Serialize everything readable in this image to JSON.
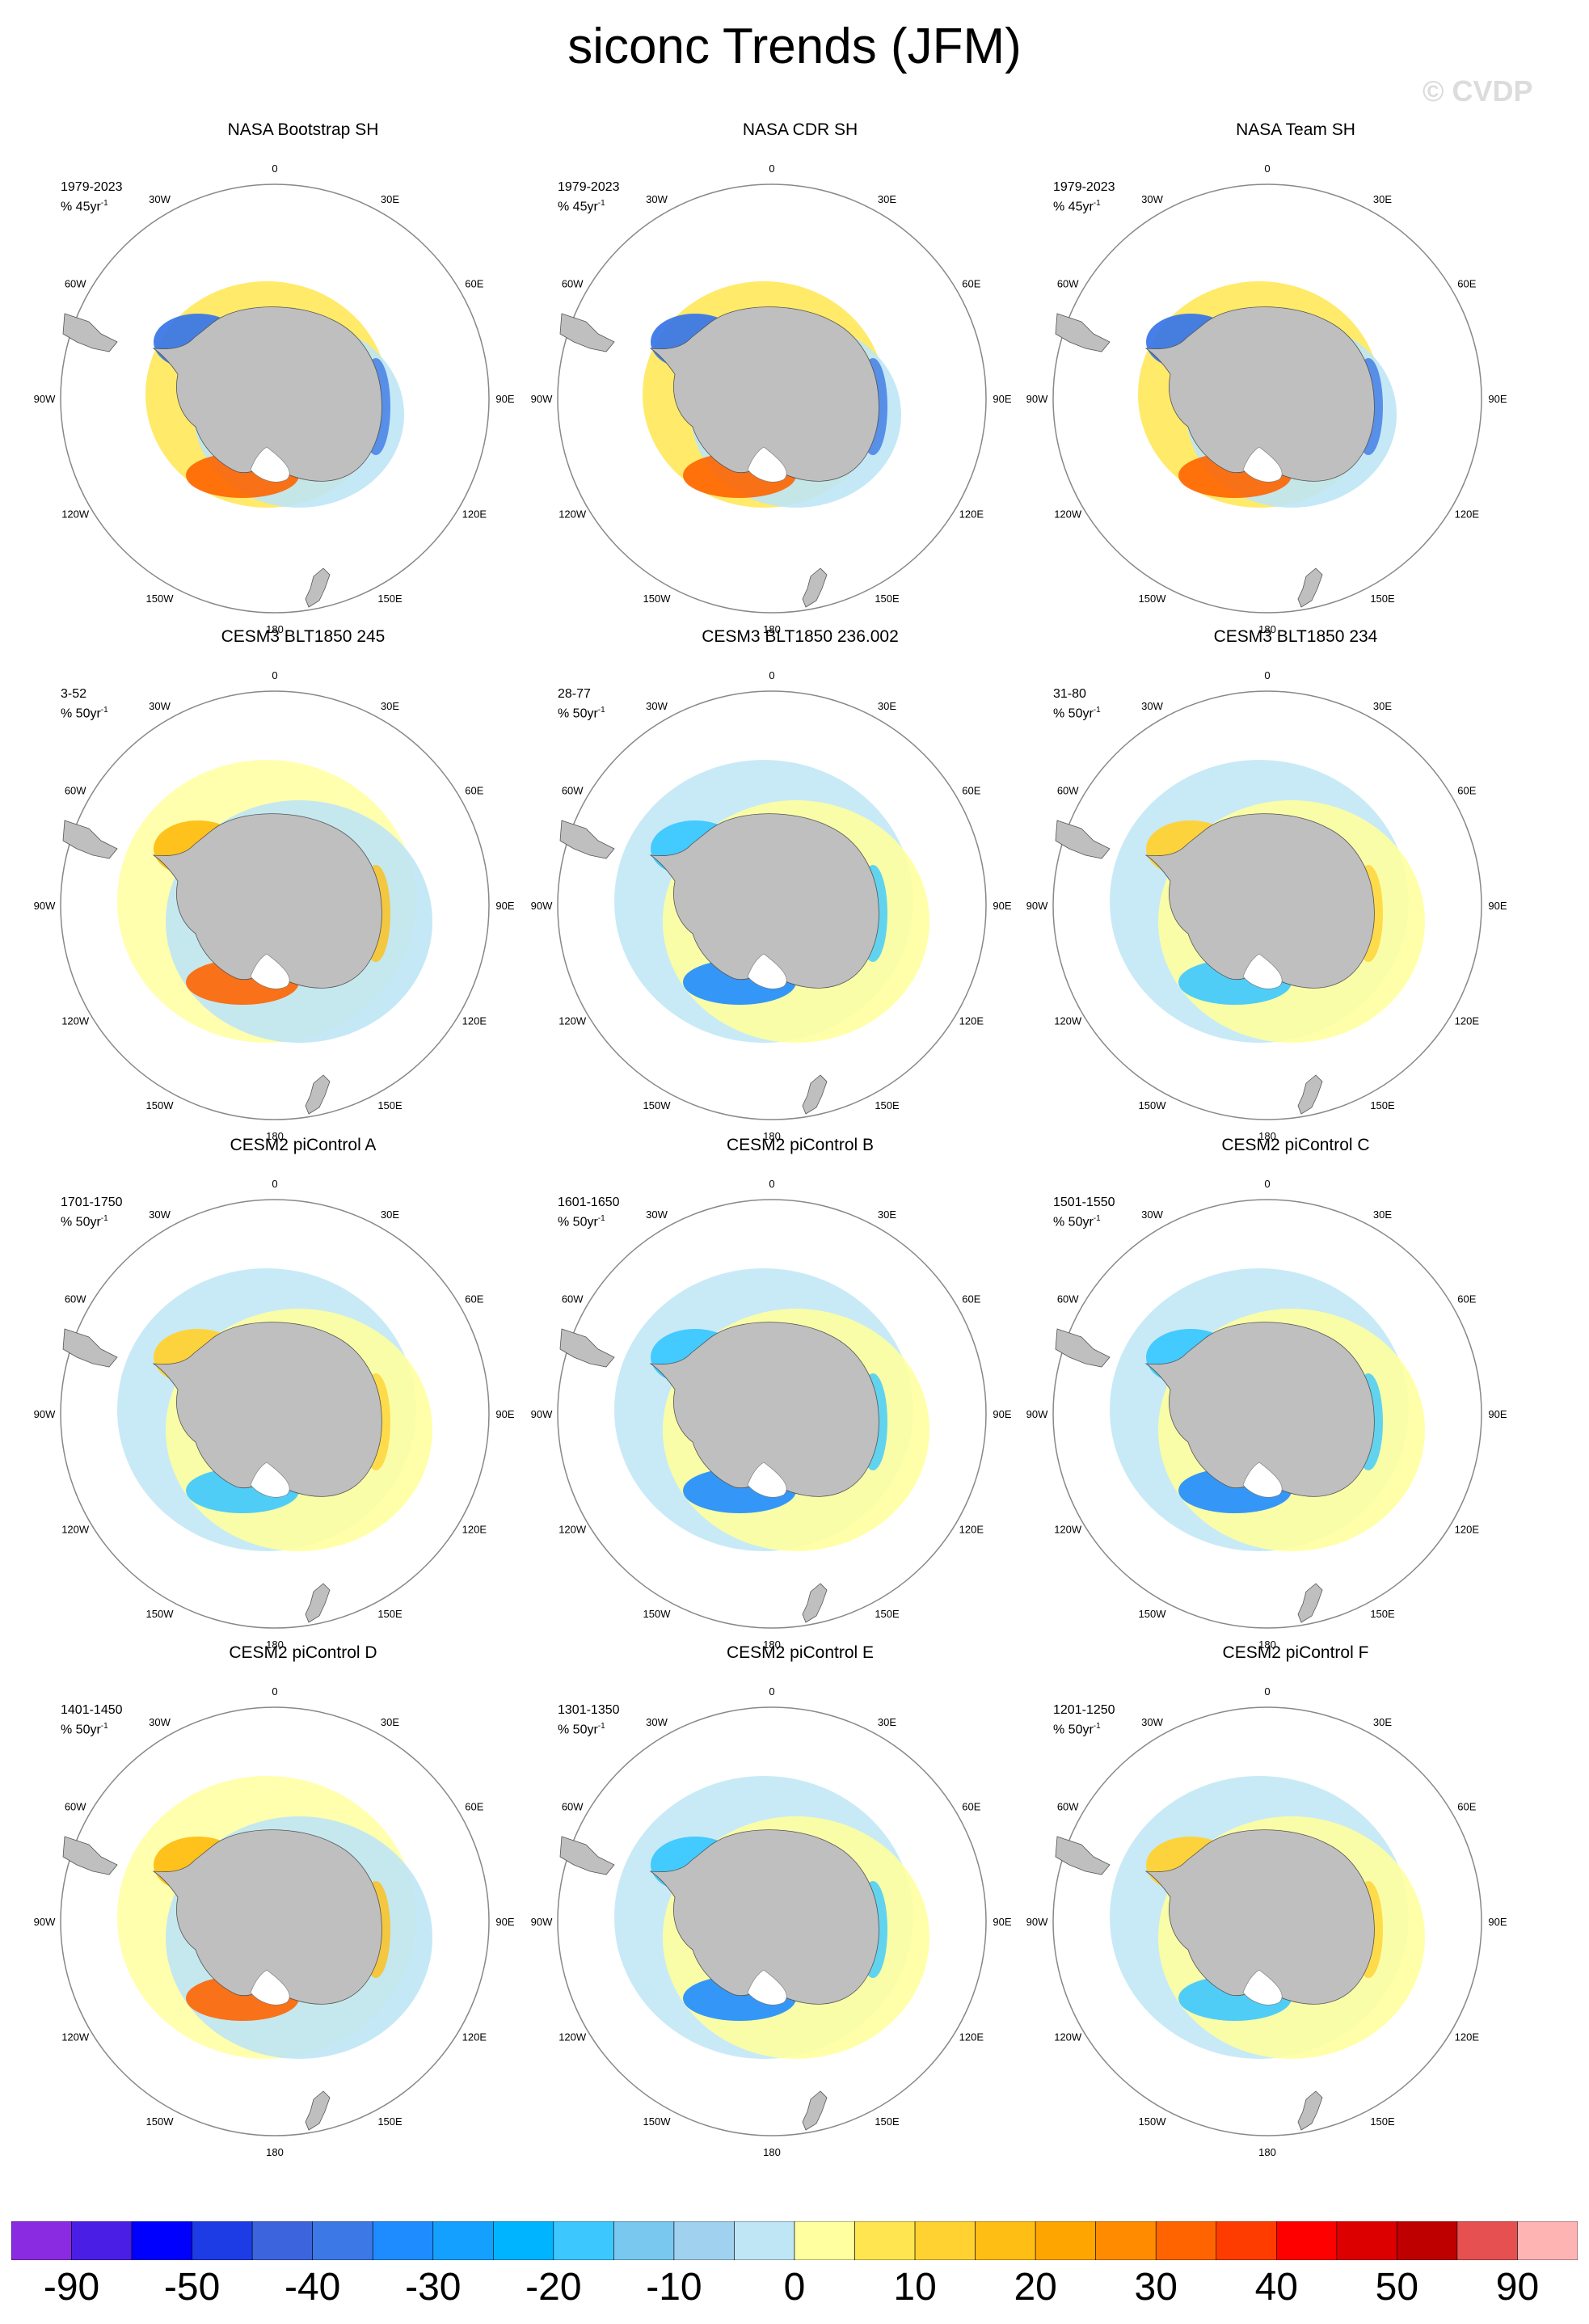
{
  "figure": {
    "title": "siconc Trends (JFM)",
    "watermark": "© CVDP"
  },
  "colors": {
    "land": "#bfbfbf",
    "circle": "#888888"
  },
  "map": {
    "projection": "south-polar-stereographic",
    "lon_labels": [
      "0",
      "30E",
      "60E",
      "90E",
      "120E",
      "150E",
      "180",
      "150W",
      "120W",
      "90W",
      "60W",
      "30W"
    ]
  },
  "panels": [
    {
      "title": "NASA Bootstrap SH",
      "period": "1979-2023",
      "units_prefix": "% 45yr",
      "units_exp": "-1",
      "pattern": "obs"
    },
    {
      "title": "NASA CDR SH",
      "period": "1979-2023",
      "units_prefix": "% 45yr",
      "units_exp": "-1",
      "pattern": "obs"
    },
    {
      "title": "NASA Team SH",
      "period": "1979-2023",
      "units_prefix": "% 45yr",
      "units_exp": "-1",
      "pattern": "obs"
    },
    {
      "title": "CESM3 BLT1850 245",
      "period": "3-52",
      "units_prefix": "% 50yr",
      "units_exp": "-1",
      "pattern": "model-pos"
    },
    {
      "title": "CESM3 BLT1850 236.002",
      "period": "28-77",
      "units_prefix": "% 50yr",
      "units_exp": "-1",
      "pattern": "model-neg"
    },
    {
      "title": "CESM3 BLT1850 234",
      "period": "31-80",
      "units_prefix": "% 50yr",
      "units_exp": "-1",
      "pattern": "model-mix"
    },
    {
      "title": "CESM2 piControl A",
      "period": "1701-1750",
      "units_prefix": "% 50yr",
      "units_exp": "-1",
      "pattern": "model-mix"
    },
    {
      "title": "CESM2 piControl B",
      "period": "1601-1650",
      "units_prefix": "% 50yr",
      "units_exp": "-1",
      "pattern": "model-neg"
    },
    {
      "title": "CESM2 piControl C",
      "period": "1501-1550",
      "units_prefix": "% 50yr",
      "units_exp": "-1",
      "pattern": "model-neg"
    },
    {
      "title": "CESM2 piControl D",
      "period": "1401-1450",
      "units_prefix": "% 50yr",
      "units_exp": "-1",
      "pattern": "model-pos"
    },
    {
      "title": "CESM2 piControl E",
      "period": "1301-1350",
      "units_prefix": "% 50yr",
      "units_exp": "-1",
      "pattern": "model-neg"
    },
    {
      "title": "CESM2 piControl F",
      "period": "1201-1250",
      "units_prefix": "% 50yr",
      "units_exp": "-1",
      "pattern": "model-mix"
    }
  ],
  "colorbar": {
    "colors": [
      "#8a2be2",
      "#4b1ee6",
      "#0000ff",
      "#1e3ce6",
      "#3c64dc",
      "#3c78e6",
      "#1e8cff",
      "#14a0ff",
      "#00b4ff",
      "#3cc8ff",
      "#78c8f0",
      "#a0d2f0",
      "#bee6f5",
      "#ffffa0",
      "#ffe650",
      "#ffd232",
      "#ffbe14",
      "#ffa500",
      "#ff8c00",
      "#ff6400",
      "#ff3c00",
      "#ff0000",
      "#dc0000",
      "#be0000",
      "#e65050",
      "#ffb4b4"
    ],
    "labels": [
      "-90",
      "-50",
      "-40",
      "-30",
      "-20",
      "-10",
      "0",
      "10",
      "20",
      "30",
      "40",
      "50",
      "90"
    ],
    "label_boundaries": [
      1,
      3,
      5,
      7,
      9,
      11,
      13,
      15,
      17,
      19,
      21,
      23,
      25
    ]
  }
}
